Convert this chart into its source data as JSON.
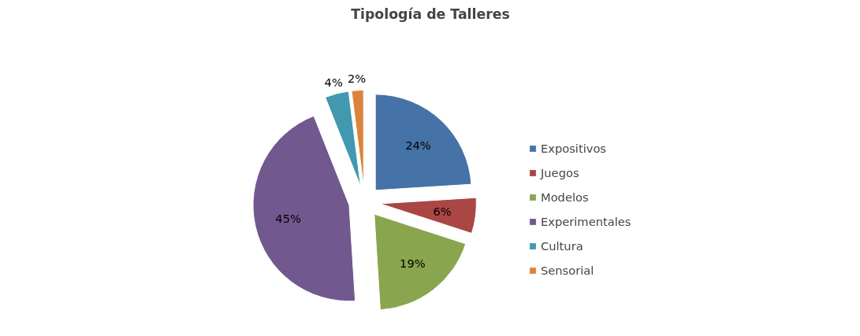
{
  "chart_data": {
    "type": "pie",
    "title": "Tipología de Talleres",
    "categories": [
      "Expositivos",
      "Juegos",
      "Modelos",
      "Experimentales",
      "Cultura",
      "Sensorial"
    ],
    "values": [
      24,
      6,
      19,
      45,
      4,
      2
    ],
    "value_labels": [
      "24%",
      "6%",
      "19%",
      "45%",
      "4%",
      "2%"
    ],
    "colors": [
      "#4572a7",
      "#aa4643",
      "#89a54e",
      "#71588f",
      "#4198af",
      "#db843d"
    ],
    "legend": "right"
  }
}
